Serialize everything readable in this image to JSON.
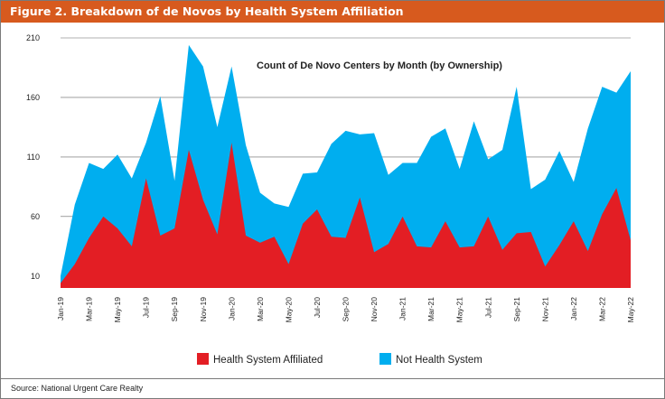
{
  "header": {
    "title": "Figure 2. Breakdown of de Novos by Health System Affiliation"
  },
  "footer": {
    "source": "Source: National Urgent Care Realty"
  },
  "colors": {
    "header_bg": "#d75a1e",
    "affiliated": "#e31e24",
    "not_health_system": "#00aeef",
    "gridline": "#666666"
  },
  "chart_data": {
    "type": "area",
    "stacked": true,
    "title": "Count of De Novo Centers by Month (by Ownership)",
    "xlabel": "",
    "ylabel": "",
    "ylim": [
      0,
      210
    ],
    "yticks": [
      10,
      60,
      110,
      160,
      210
    ],
    "grid": "horizontal",
    "legend_position": "bottom",
    "x": [
      "Jan-19",
      "Feb-19",
      "Mar-19",
      "Apr-19",
      "May-19",
      "Jun-19",
      "Jul-19",
      "Aug-19",
      "Sep-19",
      "Oct-19",
      "Nov-19",
      "Dec-19",
      "Jan-20",
      "Feb-20",
      "Mar-20",
      "Apr-20",
      "May-20",
      "Jun-20",
      "Jul-20",
      "Aug-20",
      "Sep-20",
      "Oct-20",
      "Nov-20",
      "Dec-20",
      "Jan-21",
      "Feb-21",
      "Mar-21",
      "Apr-21",
      "May-21",
      "Jun-21",
      "Jul-21",
      "Aug-21",
      "Sep-21",
      "Oct-21",
      "Nov-21",
      "Dec-21",
      "Jan-22",
      "Feb-22",
      "Mar-22",
      "Apr-22",
      "May-22"
    ],
    "tick_labels": [
      "Jan-19",
      "Mar-19",
      "May-19",
      "Jul-19",
      "Sep-19",
      "Nov-19",
      "Jan-20",
      "Mar-20",
      "May-20",
      "Jul-20",
      "Sep-20",
      "Nov-20",
      "Jan-21",
      "Mar-21",
      "May-21",
      "Jul-21",
      "Sep-21",
      "Nov-21",
      "Jan-22",
      "Mar-22",
      "May-22"
    ],
    "series": [
      {
        "name": "Health System Affiliated",
        "values": [
          4,
          20,
          42,
          60,
          50,
          35,
          92,
          44,
          50,
          116,
          74,
          45,
          122,
          44,
          38,
          43,
          20,
          54,
          66,
          43,
          42,
          76,
          30,
          37,
          60,
          35,
          34,
          56,
          34,
          35,
          60,
          32,
          46,
          47,
          18,
          36,
          56,
          31,
          62,
          84,
          40
        ]
      },
      {
        "name": "Not Health System",
        "values": [
          6,
          50,
          63,
          40,
          62,
          57,
          30,
          117,
          40,
          88,
          112,
          90,
          64,
          76,
          42,
          28,
          48,
          42,
          31,
          78,
          90,
          53,
          100,
          58,
          45,
          70,
          93,
          78,
          66,
          105,
          48,
          84,
          123,
          36,
          73,
          79,
          33,
          103,
          107,
          80,
          142
        ]
      }
    ]
  },
  "legend": {
    "items": [
      {
        "label": "Health System Affiliated",
        "color": "#e31e24"
      },
      {
        "label": "Not Health System",
        "color": "#00aeef"
      }
    ]
  }
}
